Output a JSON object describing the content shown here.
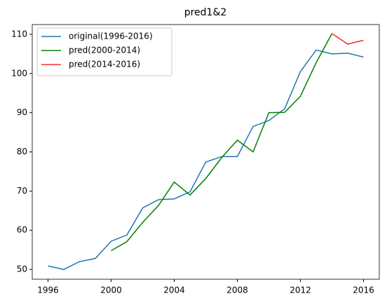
{
  "chart_data": {
    "type": "line",
    "title": "pred1&2",
    "x": [
      1996,
      1997,
      1998,
      1999,
      2000,
      2001,
      2002,
      2003,
      2004,
      2005,
      2006,
      2007,
      2008,
      2009,
      2010,
      2011,
      2012,
      2013,
      2014,
      2015,
      2016
    ],
    "series": [
      {
        "name": "original(1996-2016)",
        "color": "#1f77b4",
        "values": [
          50.9,
          50.0,
          52.0,
          52.8,
          57.2,
          58.8,
          65.7,
          67.8,
          68.0,
          69.8,
          77.4,
          78.8,
          78.8,
          86.5,
          88.0,
          91.0,
          100.5,
          106.0,
          105.0,
          105.2,
          104.2
        ]
      },
      {
        "name": "pred(2000-2014)",
        "color": "#008000",
        "values": [
          null,
          null,
          null,
          null,
          54.8,
          57.1,
          62.0,
          66.3,
          72.3,
          69.0,
          73.2,
          78.5,
          83.0,
          80.0,
          90.0,
          90.1,
          94.2,
          102.8,
          110.2,
          null,
          null
        ]
      },
      {
        "name": "pred(2014-2016)",
        "color": "#f03030",
        "values": [
          null,
          null,
          null,
          null,
          null,
          null,
          null,
          null,
          null,
          null,
          null,
          null,
          null,
          null,
          null,
          null,
          null,
          null,
          110.2,
          107.5,
          108.5
        ]
      }
    ],
    "xlim": [
      1995,
      2017
    ],
    "xticks": [
      1996,
      2000,
      2004,
      2008,
      2012,
      2016
    ],
    "ylim": [
      47.5,
      112.5
    ],
    "yticks": [
      50,
      60,
      70,
      80,
      90,
      100,
      110
    ],
    "legend": "upper-left"
  }
}
